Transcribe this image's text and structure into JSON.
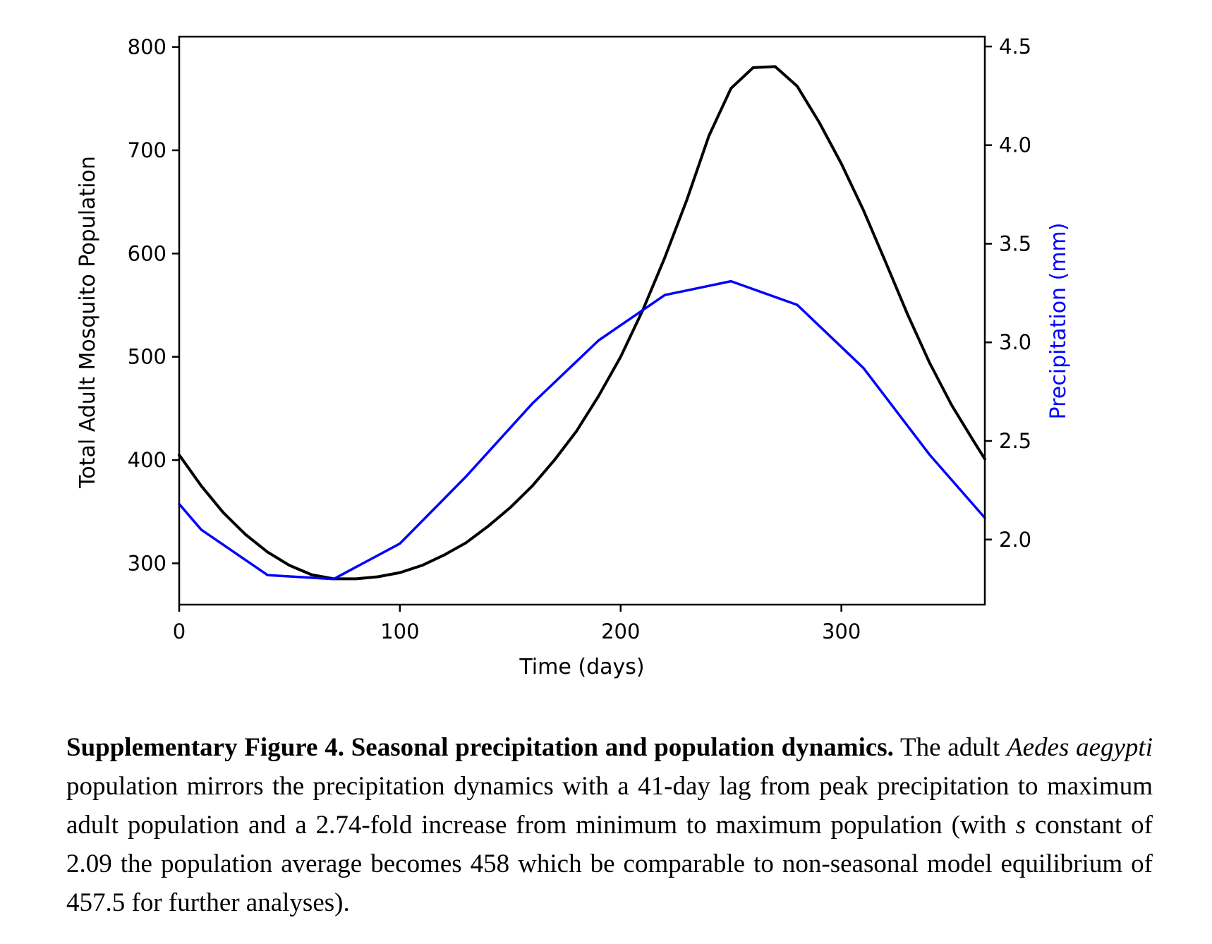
{
  "chart_data": {
    "type": "line",
    "xlabel": "Time (days)",
    "ylabel": "Total Adult Mosquito Population",
    "y2label": "Precipitation (mm)",
    "xlim": [
      0,
      365
    ],
    "ylim": [
      260,
      810
    ],
    "y2lim": [
      1.67,
      4.55
    ],
    "xticks": [
      0,
      100,
      200,
      300
    ],
    "yticks": [
      300,
      400,
      500,
      600,
      700,
      800
    ],
    "y2ticks": [
      "2.0",
      "2.5",
      "3.0",
      "3.5",
      "4.0",
      "4.5"
    ],
    "grid": false,
    "series": [
      {
        "axis": "left",
        "color": "#000000",
        "x": [
          0,
          10,
          20,
          30,
          40,
          50,
          60,
          70,
          80,
          90,
          100,
          110,
          120,
          130,
          140,
          150,
          160,
          170,
          180,
          190,
          200,
          210,
          220,
          230,
          240,
          250,
          260,
          270,
          280,
          290,
          300,
          310,
          320,
          330,
          340,
          350,
          360,
          365
        ],
        "values": [
          405,
          375,
          349,
          328,
          311,
          298,
          289,
          285,
          285,
          287,
          291,
          298,
          308,
          320,
          336,
          354,
          375,
          400,
          428,
          462,
          500,
          545,
          596,
          652,
          714,
          760,
          780,
          781,
          762,
          727,
          687,
          642,
          592,
          541,
          494,
          453,
          418,
          401
        ]
      },
      {
        "axis": "right",
        "color": "#0000ff",
        "x": [
          0,
          10,
          40,
          70,
          100,
          130,
          160,
          190,
          220,
          250,
          280,
          310,
          340,
          365
        ],
        "values": [
          2.18,
          2.05,
          1.82,
          1.8,
          1.98,
          2.32,
          2.69,
          3.01,
          3.24,
          3.31,
          3.19,
          2.87,
          2.43,
          2.11
        ]
      }
    ]
  },
  "caption": {
    "bold": "Supplementary Figure 4. Seasonal precipitation and population dynamics.",
    "part1": " The adult ",
    "species": "Aedes aegypti",
    "part2": " population mirrors the precipitation dynamics with a 41-day lag from peak precipitation to maximum adult population and a 2.74-fold increase from minimum to maximum population (with ",
    "var": "s",
    "part3": " constant of 2.09 the population average becomes 458 which be comparable to non-seasonal model equilibrium of 457.5 for further analyses)."
  }
}
